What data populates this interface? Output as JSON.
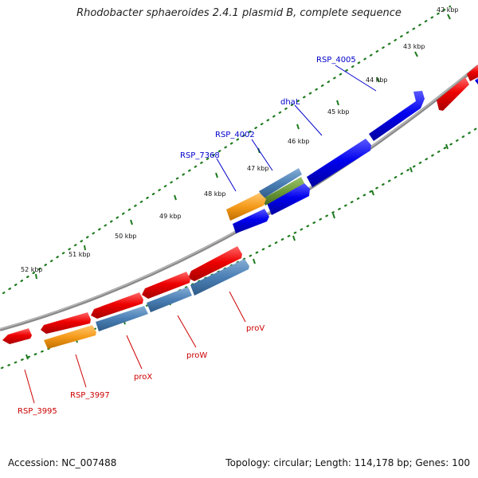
{
  "title": "Rhodobacter sphaeroides 2.4.1 plasmid B, complete sequence",
  "footer": {
    "accession": "Accession: NC_007488",
    "summary": "Topology: circular; Length: 114,178 bp; Genes: 100"
  },
  "kbp_ticks": [
    "42 kbp",
    "43 kbp",
    "44 kbp",
    "45 kbp",
    "46 kbp",
    "47 kbp",
    "48 kbp",
    "49 kbp",
    "50 kbp",
    "51 kbp",
    "52 kbp"
  ],
  "gene_labels": {
    "forward": [
      "RSP_4005",
      "dhaL",
      "RSP_4002",
      "RSP_7368"
    ],
    "reverse": [
      "proV",
      "proW",
      "proX",
      "RSP_3997",
      "RSP_3995"
    ]
  },
  "colors": {
    "backbone": "#8a8a8a",
    "tick_green": "#1f7a1f",
    "forward_gene": "#0000ee",
    "reverse_gene": "#ee0000",
    "steelblue_gene": "#4a7fb5",
    "orange_gene": "#f59a1a",
    "olive_gene": "#6b9a3a",
    "forward_label": "#0000cc",
    "reverse_label": "#cc0000"
  }
}
